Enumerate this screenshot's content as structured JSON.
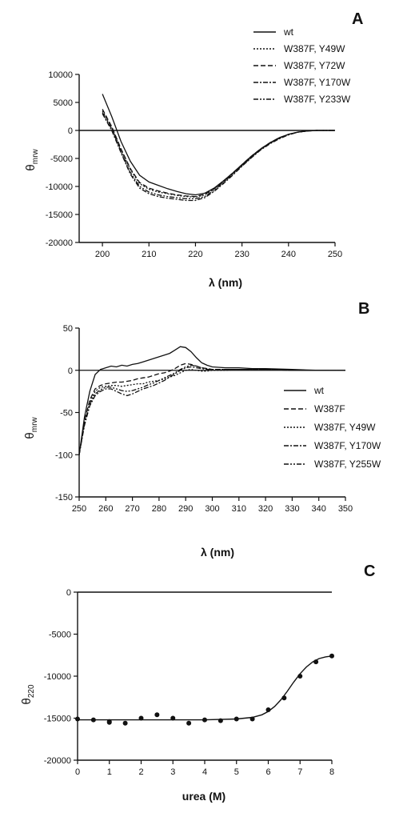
{
  "chart_data": [
    {
      "type": "line",
      "panel": "A",
      "xlabel": "λ (nm)",
      "ylabel_main": "θ",
      "ylabel_sub": "mrw",
      "xlim": [
        195,
        250
      ],
      "ylim": [
        -20000,
        10000
      ],
      "xticks": [
        200,
        210,
        220,
        230,
        240,
        250
      ],
      "yticks": [
        10000,
        5000,
        0,
        -5000,
        -10000,
        -15000,
        -20000
      ],
      "legend_position": "top-right",
      "series": [
        {
          "name": "wt",
          "dash": "solid",
          "x": [
            200,
            202,
            204,
            206,
            208,
            210,
            212,
            214,
            216,
            218,
            220,
            222,
            224,
            226,
            228,
            230,
            232,
            234,
            236,
            238,
            240,
            242,
            244,
            246,
            248,
            250
          ],
          "y": [
            6500,
            2500,
            -2000,
            -5500,
            -8000,
            -9200,
            -9800,
            -10400,
            -10900,
            -11300,
            -11500,
            -11200,
            -10300,
            -9000,
            -7600,
            -6100,
            -4600,
            -3300,
            -2200,
            -1300,
            -700,
            -300,
            -100,
            0,
            0,
            0
          ]
        },
        {
          "name": "W387F, Y49W",
          "dash": "dot",
          "x": [
            200,
            202,
            204,
            206,
            208,
            210,
            212,
            214,
            216,
            218,
            220,
            222,
            224,
            226,
            228,
            230,
            232,
            234,
            236,
            238,
            240,
            242,
            244,
            246,
            248,
            250
          ],
          "y": [
            3500,
            500,
            -3500,
            -7000,
            -9500,
            -10500,
            -11000,
            -11300,
            -11600,
            -11800,
            -11900,
            -11500,
            -10500,
            -9200,
            -7700,
            -6200,
            -4700,
            -3400,
            -2300,
            -1400,
            -700,
            -300,
            -100,
            0,
            0,
            0
          ]
        },
        {
          "name": "W387F, Y72W",
          "dash": "dash",
          "x": [
            200,
            202,
            204,
            206,
            208,
            210,
            212,
            214,
            216,
            218,
            220,
            222,
            224,
            226,
            228,
            230,
            232,
            234,
            236,
            238,
            240,
            242,
            244,
            246,
            248,
            250
          ],
          "y": [
            3800,
            700,
            -3300,
            -6800,
            -9300,
            -10300,
            -10800,
            -11200,
            -11500,
            -11700,
            -11800,
            -11400,
            -10400,
            -9100,
            -7600,
            -6100,
            -4600,
            -3300,
            -2200,
            -1300,
            -700,
            -300,
            -100,
            0,
            0,
            0
          ]
        },
        {
          "name": "W387F, Y170W",
          "dash": "dashdot",
          "x": [
            200,
            202,
            204,
            206,
            208,
            210,
            212,
            214,
            216,
            218,
            220,
            222,
            224,
            226,
            228,
            230,
            232,
            234,
            236,
            238,
            240,
            242,
            244,
            246,
            248,
            250
          ],
          "y": [
            3000,
            0,
            -4000,
            -7800,
            -10300,
            -11300,
            -11800,
            -12100,
            -12300,
            -12500,
            -12500,
            -12000,
            -10900,
            -9500,
            -8000,
            -6400,
            -4900,
            -3500,
            -2400,
            -1500,
            -800,
            -300,
            -100,
            0,
            0,
            0
          ]
        },
        {
          "name": "W387F, Y233W",
          "dash": "dashdotdot",
          "x": [
            200,
            202,
            204,
            206,
            208,
            210,
            212,
            214,
            216,
            218,
            220,
            222,
            224,
            226,
            228,
            230,
            232,
            234,
            236,
            238,
            240,
            242,
            244,
            246,
            248,
            250
          ],
          "y": [
            3200,
            300,
            -3800,
            -7500,
            -10000,
            -11000,
            -11500,
            -11800,
            -12000,
            -12200,
            -12200,
            -11800,
            -10700,
            -9300,
            -7800,
            -6300,
            -4800,
            -3400,
            -2300,
            -1400,
            -700,
            -300,
            -100,
            0,
            0,
            0
          ]
        }
      ]
    },
    {
      "type": "line",
      "panel": "B",
      "xlabel": "λ (nm)",
      "ylabel_main": "θ",
      "ylabel_sub": "mrw",
      "xlim": [
        250,
        350
      ],
      "ylim": [
        -150,
        50
      ],
      "xticks": [
        250,
        260,
        270,
        280,
        290,
        300,
        310,
        320,
        330,
        340,
        350
      ],
      "yticks": [
        50,
        0,
        -50,
        -100,
        -150
      ],
      "legend_position": "right",
      "series": [
        {
          "name": "wt",
          "dash": "solid",
          "x": [
            250,
            252,
            254,
            256,
            258,
            260,
            262,
            264,
            266,
            268,
            270,
            272,
            274,
            276,
            278,
            280,
            282,
            284,
            286,
            288,
            290,
            292,
            294,
            296,
            298,
            300,
            305,
            310,
            315,
            320,
            330,
            340,
            350
          ],
          "y": [
            -100,
            -55,
            -25,
            -5,
            1,
            3,
            5,
            4,
            6,
            5,
            7,
            8,
            10,
            12,
            14,
            16,
            18,
            20,
            24,
            28,
            27,
            22,
            15,
            9,
            6,
            4,
            3,
            3,
            2,
            2,
            1,
            0,
            0
          ]
        },
        {
          "name": "W387F",
          "dash": "dash",
          "x": [
            250,
            252,
            254,
            256,
            258,
            260,
            262,
            264,
            266,
            268,
            270,
            272,
            274,
            276,
            278,
            280,
            282,
            284,
            286,
            288,
            290,
            292,
            294,
            296,
            298,
            300,
            305,
            310,
            315,
            320,
            330,
            340,
            350
          ],
          "y": [
            -100,
            -60,
            -35,
            -22,
            -18,
            -16,
            -15,
            -14,
            -14,
            -13,
            -12,
            -10,
            -9,
            -8,
            -6,
            -4,
            -3,
            -1,
            2,
            6,
            8,
            7,
            5,
            3,
            2,
            1,
            1,
            1,
            1,
            1,
            0,
            0,
            0
          ]
        },
        {
          "name": "W387F, Y49W",
          "dash": "dot",
          "x": [
            250,
            252,
            254,
            256,
            258,
            260,
            262,
            264,
            266,
            268,
            270,
            272,
            274,
            276,
            278,
            280,
            282,
            284,
            286,
            288,
            290,
            292,
            294,
            296,
            298,
            300,
            305,
            310,
            315,
            320,
            330,
            340,
            350
          ],
          "y": [
            -100,
            -62,
            -38,
            -25,
            -20,
            -19,
            -18,
            -18,
            -19,
            -18,
            -17,
            -16,
            -16,
            -14,
            -13,
            -12,
            -10,
            -8,
            -6,
            -3,
            0,
            1,
            0,
            -1,
            -1,
            0,
            0,
            1,
            1,
            1,
            0,
            0,
            0
          ]
        },
        {
          "name": "W387F, Y170W",
          "dash": "dashdot",
          "x": [
            250,
            252,
            254,
            256,
            258,
            260,
            262,
            264,
            266,
            268,
            270,
            272,
            274,
            276,
            278,
            280,
            282,
            284,
            286,
            288,
            290,
            292,
            294,
            296,
            298,
            300,
            305,
            310,
            315,
            320,
            330,
            340,
            350
          ],
          "y": [
            -100,
            -65,
            -42,
            -30,
            -25,
            -22,
            -22,
            -25,
            -28,
            -30,
            -28,
            -25,
            -22,
            -20,
            -18,
            -15,
            -12,
            -8,
            -4,
            0,
            3,
            4,
            3,
            2,
            1,
            1,
            1,
            1,
            1,
            1,
            0,
            0,
            0
          ]
        },
        {
          "name": "W387F, Y255W",
          "dash": "dashdotdot",
          "x": [
            250,
            252,
            254,
            256,
            258,
            260,
            262,
            264,
            266,
            268,
            270,
            272,
            274,
            276,
            278,
            280,
            282,
            284,
            286,
            288,
            290,
            292,
            294,
            296,
            298,
            300,
            305,
            310,
            315,
            320,
            330,
            340,
            350
          ],
          "y": [
            -100,
            -63,
            -40,
            -28,
            -23,
            -20,
            -20,
            -22,
            -24,
            -25,
            -24,
            -22,
            -20,
            -17,
            -15,
            -12,
            -9,
            -6,
            -3,
            1,
            4,
            6,
            5,
            3,
            2,
            1,
            1,
            1,
            1,
            1,
            0,
            0,
            0
          ]
        }
      ]
    },
    {
      "type": "scatter",
      "panel": "C",
      "xlabel": "urea (M)",
      "ylabel_main": "θ",
      "ylabel_sub": "220",
      "xlim": [
        0,
        8
      ],
      "ylim": [
        -20000,
        0
      ],
      "xticks": [
        0,
        1,
        2,
        3,
        4,
        5,
        6,
        7,
        8
      ],
      "yticks": [
        0,
        -5000,
        -10000,
        -15000,
        -20000
      ],
      "points": {
        "x": [
          0,
          0.5,
          1,
          1,
          1.5,
          2,
          2.5,
          3,
          3.5,
          4,
          4.5,
          5,
          5.5,
          6,
          6.5,
          7,
          7.5,
          8
        ],
        "y": [
          -15100,
          -15200,
          -15400,
          -15500,
          -15600,
          -15000,
          -14600,
          -15000,
          -15600,
          -15200,
          -15300,
          -15100,
          -15100,
          -14000,
          -12600,
          -10000,
          -8300,
          -7600
        ]
      },
      "fit": {
        "x": [
          0,
          1,
          2,
          3,
          4,
          5,
          5.5,
          5.8,
          6,
          6.2,
          6.4,
          6.6,
          6.8,
          7,
          7.2,
          7.4,
          7.6,
          7.8,
          8
        ],
        "y": [
          -15200,
          -15200,
          -15200,
          -15200,
          -15200,
          -15100,
          -14900,
          -14600,
          -14200,
          -13600,
          -12800,
          -11800,
          -10700,
          -9700,
          -8900,
          -8300,
          -7900,
          -7700,
          -7600
        ]
      }
    }
  ]
}
